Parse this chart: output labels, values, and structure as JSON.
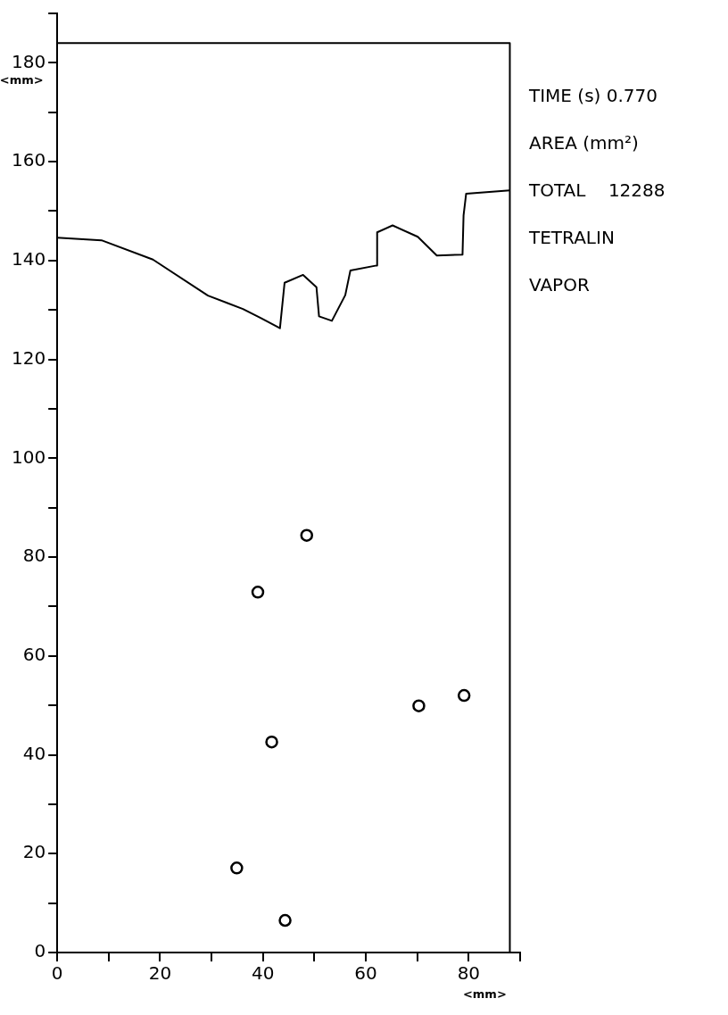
{
  "chart_data": {
    "type": "scatter",
    "xlabel": "<mm>",
    "ylabel": "<mm>",
    "annotations": [
      "TIME (s) 0.770",
      "AREA (mm²)",
      "TOTAL    12288",
      "TETRALIN",
      "VAPOR"
    ],
    "xlim": [
      0,
      90
    ],
    "ylim": [
      0,
      190
    ],
    "xticks": [
      0,
      {
        "value": 10,
        "label": null
      },
      20,
      {
        "value": 30,
        "label": null
      },
      40,
      {
        "value": 50,
        "label": null
      },
      60,
      {
        "value": 70,
        "label": null
      },
      80,
      {
        "value": 90,
        "label": null
      }
    ],
    "yticks": [
      0,
      {
        "value": 10,
        "label": null
      },
      20,
      {
        "value": 30,
        "label": null
      },
      40,
      {
        "value": 50,
        "label": null
      },
      60,
      {
        "value": 70,
        "label": null
      },
      80,
      {
        "value": 90,
        "label": null
      },
      100,
      {
        "value": 110,
        "label": null
      },
      120,
      {
        "value": 130,
        "label": null
      },
      140,
      {
        "value": 150,
        "label": null
      },
      160,
      {
        "value": 170,
        "label": null
      },
      180,
      {
        "value": 190,
        "label": null
      }
    ],
    "grid": false,
    "legend": false,
    "series": [
      {
        "type": "line",
        "color": "#000000",
        "marker": "none",
        "line_style": "solid",
        "x": [
          0,
          88,
          88
        ],
        "values": [
          184,
          184,
          0
        ]
      },
      {
        "type": "line",
        "color": "#000000",
        "marker": "none",
        "line_style": "solid",
        "x": [
          0,
          8.6,
          18.6,
          29.3,
          36.1,
          39.7,
          43.3,
          44.2,
          47.8,
          50.4,
          50.9,
          53.4,
          56.0,
          57.0,
          62.1,
          62.2,
          65.2,
          70.1,
          73.8,
          78.8,
          79.0,
          79.5,
          88
        ],
        "values": [
          144.6,
          144.1,
          140.2,
          132.9,
          130.2,
          128.3,
          126.3,
          135.5,
          137.1,
          134.6,
          128.7,
          127.8,
          133.0,
          138.0,
          139.0,
          145.7,
          147.1,
          144.8,
          141.0,
          141.2,
          149.1,
          153.5,
          154.2
        ]
      },
      {
        "color": "#000000",
        "marker": "circle",
        "x": [
          48.5,
          39.0,
          41.7,
          70.3,
          79.1,
          34.9,
          44.3
        ],
        "values": [
          84.4,
          72.9,
          42.6,
          49.9,
          52.0,
          17.1,
          6.5
        ]
      }
    ]
  }
}
